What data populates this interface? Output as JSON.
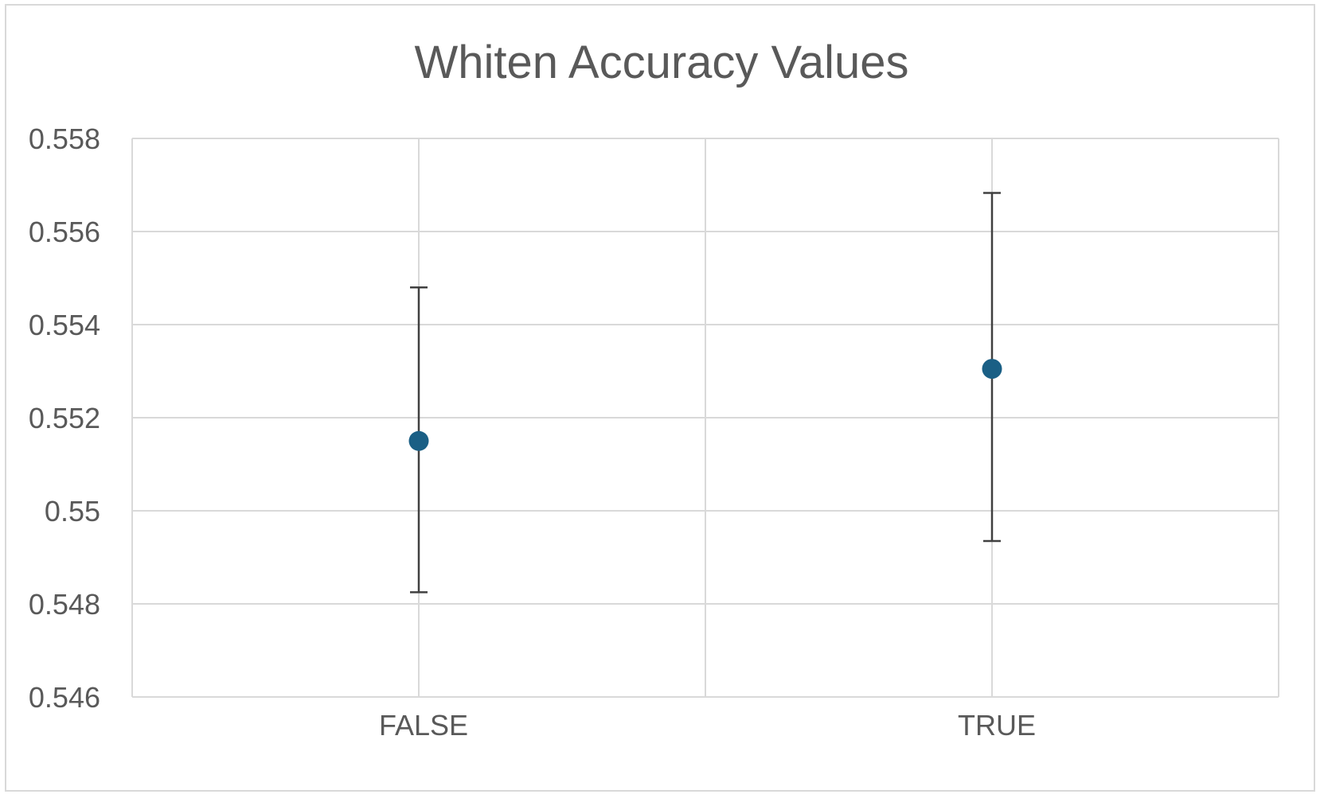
{
  "chart_data": {
    "type": "scatter",
    "title": "Whiten Accuracy Values",
    "xlabel": "",
    "ylabel": "",
    "categories": [
      "FALSE",
      "TRUE"
    ],
    "series": [
      {
        "values": [
          0.5515,
          0.55305
        ],
        "error_low": [
          0.54825,
          0.54935
        ],
        "error_high": [
          0.5548,
          0.55683
        ]
      }
    ],
    "ylim": [
      0.546,
      0.558
    ],
    "yticks": [
      0.546,
      0.548,
      0.55,
      0.552,
      0.554,
      0.556,
      0.558
    ],
    "ytick_labels": [
      "0.546",
      "0.548",
      "0.55",
      "0.552",
      "0.554",
      "0.556",
      "0.558"
    ],
    "grid": true,
    "legend": "none",
    "colors": {
      "marker": "#1a5f85",
      "error_bar": "#404040",
      "grid": "#d9d9d9",
      "text": "#595959"
    }
  }
}
